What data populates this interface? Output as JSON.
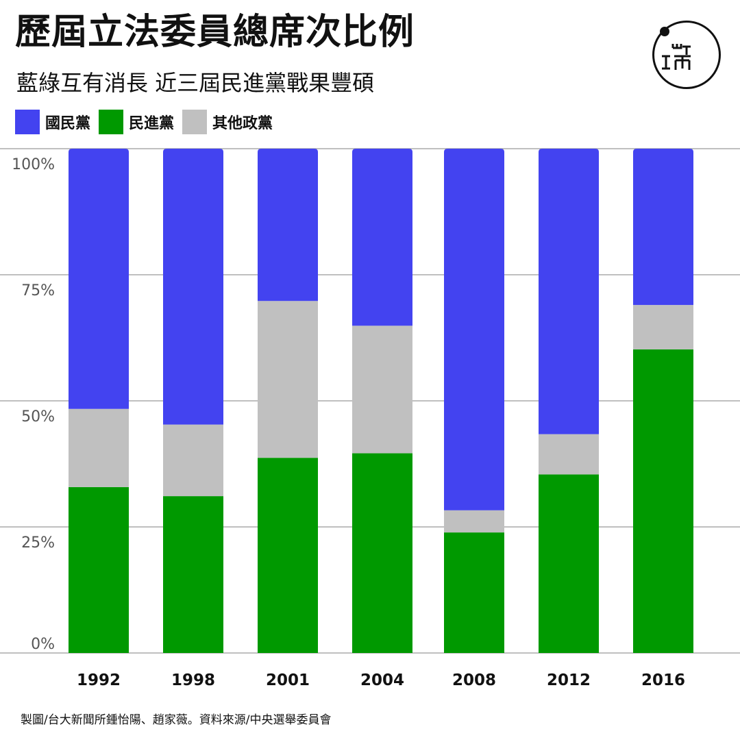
{
  "title": "歷屆立法委員總席次比例",
  "subtitle": "藍綠互有消長 近三屆民進黨戰果豐碩",
  "logo_text": "端",
  "credit": "製圖/台大新聞所鍾怡陽、趙家薇。資料來源/中央選舉委員會",
  "colors": {
    "kmt": "#4343f0",
    "dpp": "#009900",
    "other": "#c0c0c0",
    "grid": "#999999",
    "text": "#555555"
  },
  "chart_data": {
    "type": "bar",
    "stacked": true,
    "categories": [
      "1992",
      "1998",
      "2001",
      "2004",
      "2008",
      "2012",
      "2016"
    ],
    "series": [
      {
        "name": "民進黨",
        "color": "#009900",
        "values": [
          32.9,
          31.1,
          38.7,
          39.6,
          23.9,
          35.4,
          60.2
        ]
      },
      {
        "name": "其他政黨",
        "color": "#c0c0c0",
        "values": [
          15.5,
          14.2,
          31.1,
          25.3,
          4.4,
          8.0,
          8.8
        ]
      },
      {
        "name": "國民黨",
        "color": "#4343f0",
        "values": [
          51.6,
          54.7,
          30.2,
          35.1,
          71.7,
          56.6,
          31.0
        ]
      }
    ],
    "legend_order": [
      "國民黨",
      "民進黨",
      "其他政黨"
    ],
    "yticks": [
      "0%",
      "25%",
      "50%",
      "75%",
      "100%"
    ],
    "ylim": [
      0,
      100
    ],
    "grid": true,
    "legend_position": "top-left"
  }
}
